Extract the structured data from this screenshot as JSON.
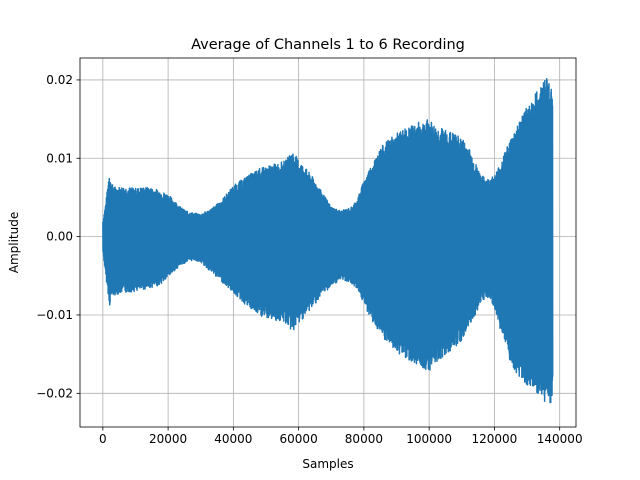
{
  "chart_data": {
    "type": "line",
    "title": "Average of Channels 1 to 6 Recording",
    "xlabel": "Samples",
    "ylabel": "Amplitude",
    "xlim": [
      -7000,
      145000
    ],
    "ylim": [
      -0.0243,
      0.0228
    ],
    "grid": true,
    "x_ticks": [
      0,
      20000,
      40000,
      60000,
      80000,
      100000,
      120000,
      140000
    ],
    "x_tick_labels": [
      "0",
      "20000",
      "40000",
      "60000",
      "80000",
      "100000",
      "120000",
      "140000"
    ],
    "y_ticks": [
      -0.02,
      -0.01,
      0.0,
      0.01,
      0.02
    ],
    "y_tick_labels": [
      "−0.02",
      "−0.01",
      "0.00",
      "0.01",
      "0.02"
    ],
    "series": [
      {
        "color": "#1f77b4",
        "sample_count": 138000,
        "envelope": {
          "x": [
            0,
            800,
            1500,
            2000,
            2500,
            4000,
            6000,
            8000,
            10000,
            12000,
            14000,
            16000,
            18000,
            20000,
            22000,
            24000,
            26000,
            28000,
            30000,
            33000,
            36000,
            40000,
            44000,
            48000,
            52000,
            56000,
            58000,
            60000,
            62000,
            64000,
            67000,
            70000,
            73000,
            76000,
            78000,
            80000,
            83000,
            86000,
            90000,
            94000,
            98000,
            100000,
            102000,
            105000,
            108000,
            110000,
            112000,
            114000,
            116000,
            118000,
            120000,
            122000,
            125000,
            128000,
            131000,
            134000,
            136000,
            137000,
            137800
          ],
          "upper": [
            0.002,
            0.004,
            0.0065,
            0.0085,
            0.0068,
            0.0063,
            0.0064,
            0.0063,
            0.0062,
            0.0063,
            0.0063,
            0.0061,
            0.0058,
            0.0054,
            0.0046,
            0.0037,
            0.0032,
            0.003,
            0.0029,
            0.0035,
            0.0045,
            0.0065,
            0.0077,
            0.0087,
            0.0092,
            0.0097,
            0.011,
            0.0098,
            0.0088,
            0.0078,
            0.0058,
            0.0038,
            0.0033,
            0.0037,
            0.0048,
            0.0072,
            0.0098,
            0.0118,
            0.0132,
            0.0141,
            0.0148,
            0.015,
            0.0141,
            0.0137,
            0.0131,
            0.0126,
            0.0116,
            0.0096,
            0.0078,
            0.0074,
            0.0078,
            0.0096,
            0.0126,
            0.0152,
            0.0173,
            0.0192,
            0.0205,
            0.02,
            0.018
          ],
          "lower": [
            -0.002,
            -0.005,
            -0.007,
            -0.009,
            -0.0077,
            -0.0074,
            -0.0072,
            -0.0071,
            -0.007,
            -0.0068,
            -0.0066,
            -0.0064,
            -0.006,
            -0.0052,
            -0.0043,
            -0.0036,
            -0.0032,
            -0.003,
            -0.0033,
            -0.0045,
            -0.0056,
            -0.0072,
            -0.0089,
            -0.0102,
            -0.0106,
            -0.0111,
            -0.0122,
            -0.0111,
            -0.0101,
            -0.0091,
            -0.0076,
            -0.0063,
            -0.0055,
            -0.0059,
            -0.0067,
            -0.0087,
            -0.0112,
            -0.0132,
            -0.0148,
            -0.0158,
            -0.0168,
            -0.0171,
            -0.0161,
            -0.0151,
            -0.0141,
            -0.0133,
            -0.0116,
            -0.0101,
            -0.0082,
            -0.0078,
            -0.0092,
            -0.0122,
            -0.0167,
            -0.0181,
            -0.0194,
            -0.0206,
            -0.0213,
            -0.0221,
            -0.02
          ]
        }
      }
    ]
  }
}
